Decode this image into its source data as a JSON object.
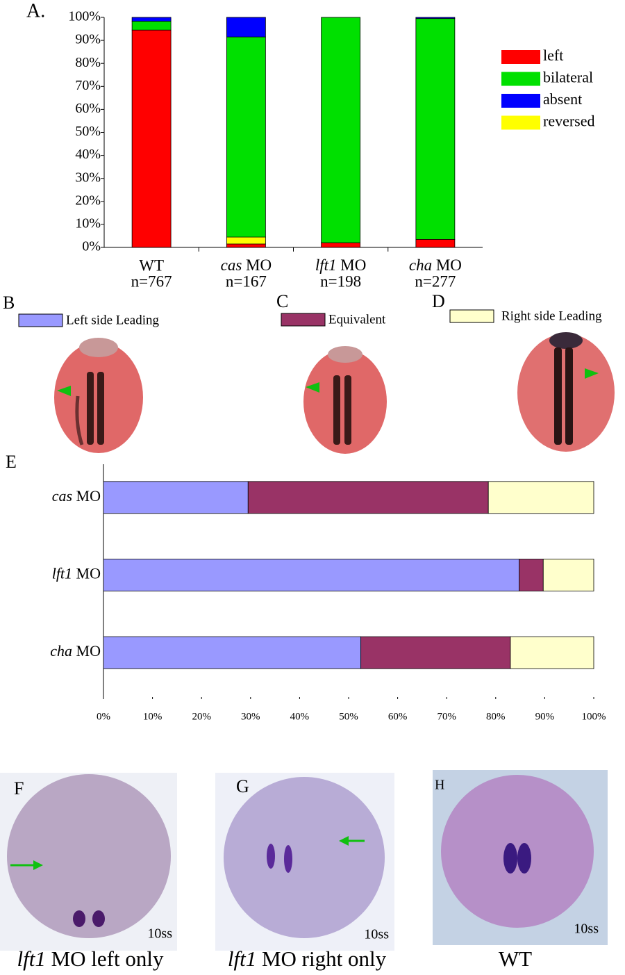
{
  "chart_data": [
    {
      "type": "stacked_bar",
      "categories": [
        "WT",
        "cas MO",
        "lft1 MO",
        "cha MO"
      ],
      "sample_sizes": [
        "n=767",
        "n=167",
        "n=198",
        "n=277"
      ],
      "series": [
        {
          "name": "left",
          "color": "#ff0000",
          "values": [
            94.5,
            1.5,
            2,
            3.5
          ]
        },
        {
          "name": "bilateral",
          "color": "#00e000",
          "values": [
            3.8,
            87,
            98,
            96
          ]
        },
        {
          "name": "absent",
          "color": "#0000ff",
          "values": [
            1.7,
            8.5,
            0,
            0.5
          ]
        },
        {
          "name": "reversed",
          "color": "#ffff00",
          "values": [
            0,
            3,
            0,
            0
          ]
        }
      ],
      "ylim": [
        0,
        100
      ],
      "yticks": [
        {
          "value": 0,
          "label": "0%"
        },
        {
          "value": 10,
          "label": "10%"
        },
        {
          "value": 20,
          "label": "20%"
        },
        {
          "value": 30,
          "label": "30%"
        },
        {
          "value": 40,
          "label": "40%"
        },
        {
          "value": 50,
          "label": "50%"
        },
        {
          "value": 60,
          "label": "60%"
        },
        {
          "value": 70,
          "label": "70%"
        },
        {
          "value": 80,
          "label": "80%"
        },
        {
          "value": 90,
          "label": "90%"
        },
        {
          "value": 100,
          "label": "100%"
        }
      ]
    },
    {
      "type": "stacked_hbar",
      "categories": [
        "cas MO",
        "lft1 MO",
        "cha MO"
      ],
      "series": [
        {
          "name": "Left side Leading",
          "color": "#9999ff",
          "values": [
            29.5,
            84.8,
            52.5
          ]
        },
        {
          "name": "Equivalent",
          "color": "#993366",
          "values": [
            49,
            4.9,
            30.5
          ]
        },
        {
          "name": "Right side Leading",
          "color": "#ffffcc",
          "values": [
            21.5,
            10.3,
            17
          ]
        }
      ],
      "xlim": [
        0,
        100
      ],
      "xticks": [
        {
          "value": 0,
          "label": "0%"
        },
        {
          "value": 10,
          "label": "10%"
        },
        {
          "value": 20,
          "label": "20%"
        },
        {
          "value": 30,
          "label": "30%"
        },
        {
          "value": 40,
          "label": "40%"
        },
        {
          "value": 50,
          "label": "50%"
        },
        {
          "value": 60,
          "label": "60%"
        },
        {
          "value": 70,
          "label": "70%"
        },
        {
          "value": 80,
          "label": "80%"
        },
        {
          "value": 90,
          "label": "90%"
        },
        {
          "value": 100,
          "label": "100%"
        }
      ]
    }
  ],
  "panel_labels": [
    "A.",
    "B",
    "C",
    "D",
    "E",
    "F",
    "G",
    "H"
  ],
  "photo_captions": [
    "lft1 MO left only",
    "lft1 MO right only",
    "WT"
  ],
  "stage_labels": [
    "10ss",
    "10ss",
    "10ss"
  ]
}
